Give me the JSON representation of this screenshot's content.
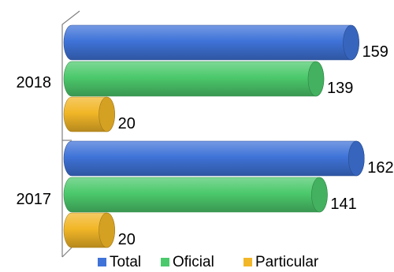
{
  "chart_data": {
    "type": "bar",
    "orientation": "horizontal",
    "style": "3d-cylinder",
    "categories": [
      "2018",
      "2017"
    ],
    "series": [
      {
        "name": "Total",
        "values": [
          159,
          162
        ],
        "color": "#3f73d8"
      },
      {
        "name": "Oficial",
        "values": [
          139,
          141
        ],
        "color": "#4cc96c"
      },
      {
        "name": "Particular",
        "values": [
          20,
          20
        ],
        "color": "#f2b728"
      }
    ],
    "xlim": [
      0,
      170
    ],
    "grid": false,
    "legend": "bottom",
    "data_labels": true
  }
}
